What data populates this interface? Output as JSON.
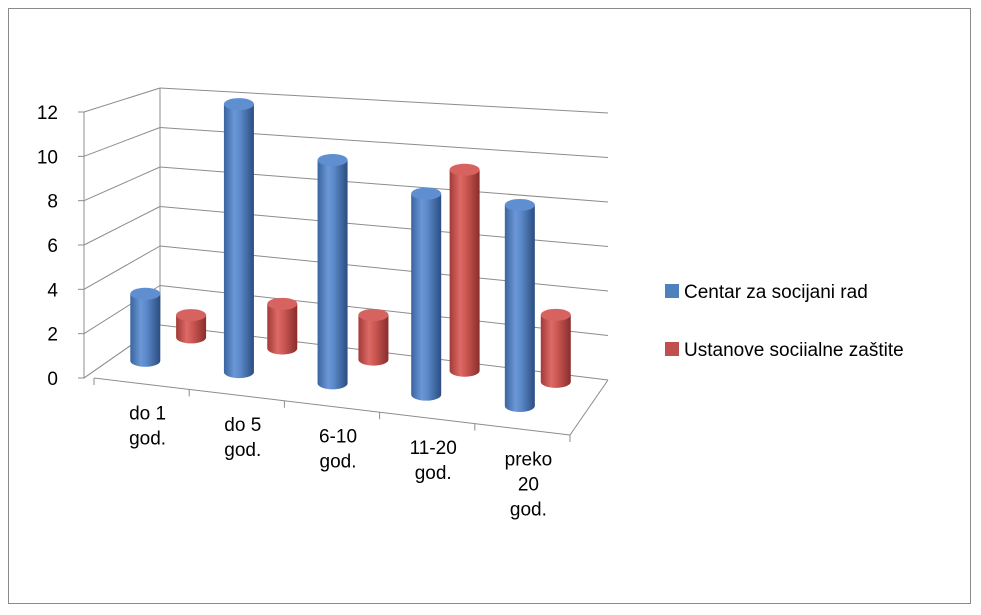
{
  "chart_data": {
    "type": "bar",
    "subtype": "3d-cylinder",
    "categories": [
      [
        "do 1",
        "god."
      ],
      [
        "do 5",
        "god."
      ],
      [
        "6-10",
        "god."
      ],
      [
        "11-20",
        "god."
      ],
      [
        "preko",
        "20",
        "god."
      ]
    ],
    "series": [
      {
        "name": "Centar za socijani rad",
        "color": "#4f81bd",
        "values": [
          3,
          12,
          10,
          9,
          9
        ]
      },
      {
        "name": "Ustanove sociialne zaštite",
        "color": "#c0504d",
        "values": [
          1,
          2,
          2,
          9,
          3
        ]
      }
    ],
    "yticks": [
      "0",
      "2",
      "4",
      "6",
      "8",
      "10",
      "12"
    ],
    "ylim": [
      0,
      12
    ],
    "grid": true,
    "legend_position": "right",
    "title": "",
    "xlabel": "",
    "ylabel": ""
  }
}
